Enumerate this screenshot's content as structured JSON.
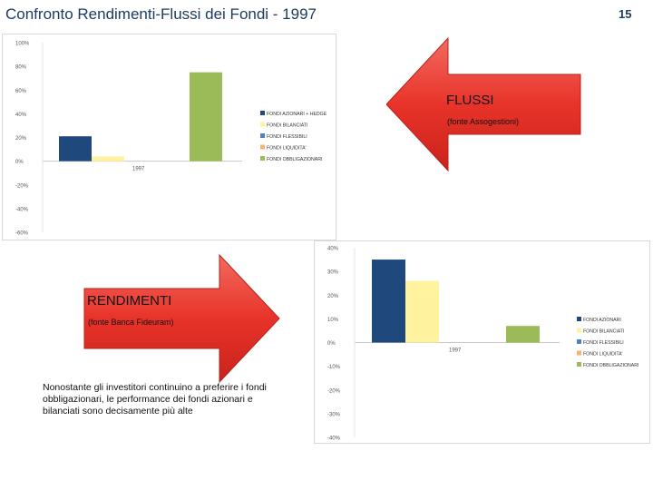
{
  "slide": {
    "title": "Confronto Rendimenti-Flussi dei Fondi - 1997",
    "page_number": "15"
  },
  "flussi_arrow": {
    "title": "FLUSSI",
    "subtitle": "(fonte Assogestioni)",
    "color": "#e8332a"
  },
  "rendimenti_arrow": {
    "title": "RENDIMENTI",
    "subtitle": "(fonte Banca Fideuram)",
    "color": "#e8332a"
  },
  "note": {
    "text": "Nonostante gli investitori continuino a preferire i fondi obbligazionari, le performance dei fondi azionari e bilanciati sono decisamente più alte"
  },
  "chart_data": [
    {
      "type": "bar",
      "categories": [
        "1997"
      ],
      "series": [
        {
          "name": "FONDI AZIONARI + HEDGE",
          "values": [
            21
          ],
          "color": "#1f497d"
        },
        {
          "name": "FONDI BILANCIATI",
          "values": [
            4
          ],
          "color": "#fff3a0"
        },
        {
          "name": "FONDI FLESSIBILI",
          "values": [
            0
          ],
          "color": "#4f81bd"
        },
        {
          "name": "FONDI LIQUIDITA'",
          "values": [
            0
          ],
          "color": "#f7b26b"
        },
        {
          "name": "FONDI OBBLIGAZIONARI",
          "values": [
            75
          ],
          "color": "#9bbb59"
        }
      ],
      "yticks": [
        "100%",
        "80%",
        "60%",
        "40%",
        "20%",
        "0%",
        "-20%",
        "-40%",
        "-60%"
      ],
      "ylim": [
        -60,
        100
      ],
      "legend": "right",
      "grid": false
    },
    {
      "type": "bar",
      "categories": [
        "1997"
      ],
      "series": [
        {
          "name": "FONDI AZIONARI",
          "values": [
            35
          ],
          "color": "#1f497d"
        },
        {
          "name": "FONDI BILANCIATI",
          "values": [
            26
          ],
          "color": "#fff3a0"
        },
        {
          "name": "FONDI FLESSIBILI",
          "values": [
            0
          ],
          "color": "#4f81bd"
        },
        {
          "name": "FONDI LIQUIDITA'",
          "values": [
            0
          ],
          "color": "#f7b26b"
        },
        {
          "name": "FONDI OBBLIGAZIONARI",
          "values": [
            7
          ],
          "color": "#9bbb59"
        }
      ],
      "yticks": [
        "40%",
        "30%",
        "20%",
        "10%",
        "0%",
        "-10%",
        "-20%",
        "-30%",
        "-40%"
      ],
      "ylim": [
        -40,
        40
      ],
      "legend": "right",
      "grid": false
    }
  ]
}
